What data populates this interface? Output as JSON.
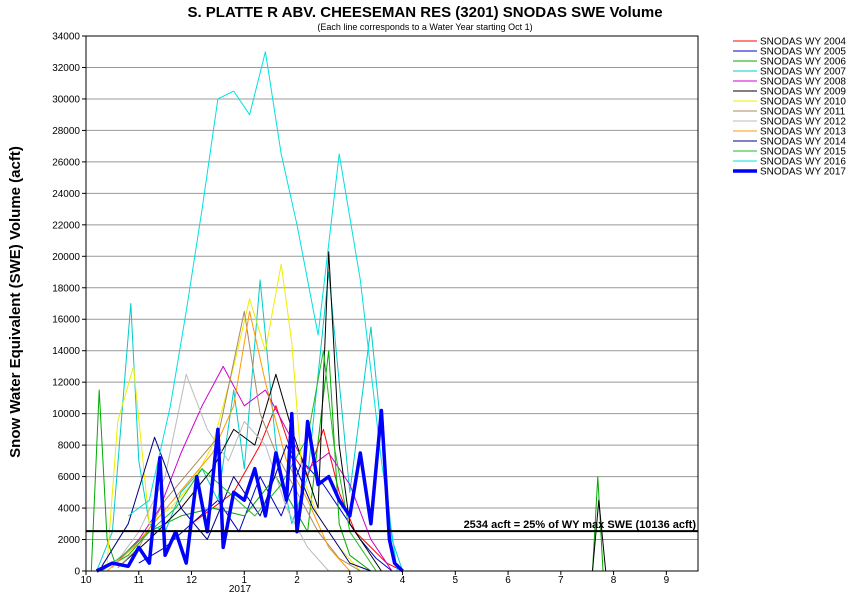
{
  "chart_data": {
    "type": "line",
    "title": "S. PLATTE R ABV. CHEESEMAN RES (3201) SNODAS SWE Volume",
    "subtitle": "(Each line corresponds to a Water Year starting Oct 1)",
    "ylabel": "Snow Water Equivalent (SWE) Volume (acft)",
    "xlabel": "",
    "x_ticks": [
      "10",
      "11",
      "12",
      "1",
      "2",
      "3",
      "4",
      "5",
      "6",
      "7",
      "8",
      "9"
    ],
    "x_year_label": "2017",
    "ylim": [
      0,
      34000
    ],
    "y_ticks": [
      0,
      2000,
      4000,
      6000,
      8000,
      10000,
      12000,
      14000,
      16000,
      18000,
      20000,
      22000,
      24000,
      26000,
      28000,
      30000,
      32000,
      34000
    ],
    "grid": true,
    "legend_position": "right",
    "reference_line": {
      "value": 2534,
      "label": "2534 acft = 25% of WY max SWE (10136 acft)"
    },
    "series": [
      {
        "name": "SNODAS WY 2004",
        "color": "#ff0000",
        "x": [
          2.0,
          2.8,
          3.3,
          3.6,
          3.9,
          4.2,
          4.5,
          4.8,
          5.1,
          5.4,
          5.7,
          6.0
        ],
        "y": [
          3000,
          5000,
          8000,
          10500,
          7500,
          6000,
          9000,
          5000,
          2500,
          1500,
          500,
          0
        ]
      },
      {
        "name": "SNODAS WY 2005",
        "color": "#0000cc",
        "x": [
          1.0,
          1.5,
          2.0,
          2.5,
          2.9,
          3.3,
          3.7,
          4.1,
          4.5,
          4.9,
          5.2,
          5.5,
          5.8
        ],
        "y": [
          500,
          1500,
          3000,
          4500,
          2500,
          6000,
          3500,
          7000,
          5500,
          3500,
          2000,
          800,
          0
        ]
      },
      {
        "name": "SNODAS WY 2006",
        "color": "#00aa00",
        "x": [
          0.1,
          0.25,
          0.4,
          0.55,
          0.8,
          1.2,
          1.8,
          2.4,
          3.0,
          3.6,
          4.2,
          4.6,
          4.8,
          5.0,
          5.4,
          9.6,
          9.7,
          9.8
        ],
        "y": [
          0,
          11500,
          2000,
          500,
          1000,
          2500,
          3500,
          4000,
          3500,
          6000,
          2500,
          14000,
          3000,
          1000,
          0,
          0,
          6000,
          0
        ]
      },
      {
        "name": "SNODAS WY 2007",
        "color": "#00cccc",
        "x": [
          0.2,
          0.5,
          0.85,
          1.0,
          1.2,
          1.5,
          1.8,
          2.2,
          2.5,
          2.8,
          3.0,
          3.3,
          3.6,
          3.9,
          4.2,
          4.6,
          4.8,
          5.0,
          5.4,
          5.8,
          6.0
        ],
        "y": [
          0,
          2500,
          17000,
          7000,
          3000,
          2500,
          5000,
          6500,
          4500,
          11500,
          6500,
          18500,
          8000,
          3000,
          6000,
          19000,
          12000,
          5000,
          15500,
          2000,
          0
        ]
      },
      {
        "name": "SNODAS WY 2008",
        "color": "#cc00cc",
        "x": [
          0.5,
          1.0,
          1.4,
          1.8,
          2.2,
          2.6,
          3.0,
          3.4,
          3.8,
          4.2,
          4.6,
          5.0,
          5.4,
          5.8
        ],
        "y": [
          300,
          2000,
          4000,
          7500,
          10500,
          13000,
          10500,
          11500,
          9000,
          6500,
          7500,
          5500,
          2000,
          0
        ]
      },
      {
        "name": "SNODAS WY 2009",
        "color": "#000000",
        "x": [
          0.7,
          1.2,
          1.8,
          2.4,
          2.8,
          3.2,
          3.6,
          3.9,
          4.2,
          4.4,
          4.6,
          4.8,
          5.0,
          5.3,
          5.6,
          9.6,
          9.72,
          9.85
        ],
        "y": [
          500,
          2000,
          4000,
          6500,
          9000,
          8000,
          12500,
          9000,
          6000,
          4000,
          20300,
          8000,
          3000,
          1500,
          0,
          0,
          4500,
          0
        ]
      },
      {
        "name": "SNODAS WY 2010",
        "color": "#eeee00",
        "x": [
          0.4,
          0.6,
          0.9,
          1.2,
          1.6,
          2.0,
          2.4,
          2.8,
          3.1,
          3.4,
          3.7,
          3.9,
          4.1,
          4.4,
          4.8,
          5.2
        ],
        "y": [
          500,
          9500,
          13000,
          3000,
          4000,
          5500,
          8000,
          13000,
          17300,
          14000,
          19500,
          14500,
          6000,
          3500,
          1500,
          0
        ]
      },
      {
        "name": "SNODAS WY 2011",
        "color": "#aa8866",
        "x": [
          0.6,
          1.0,
          1.5,
          2.0,
          2.5,
          3.0,
          3.3,
          3.6,
          4.0,
          4.4,
          4.8,
          5.2
        ],
        "y": [
          200,
          1500,
          4500,
          6500,
          8500,
          16500,
          10000,
          7500,
          5000,
          2500,
          800,
          0
        ]
      },
      {
        "name": "SNODAS WY 2012",
        "color": "#bbbbbb",
        "x": [
          0.5,
          1.0,
          1.5,
          1.9,
          2.3,
          2.7,
          3.0,
          3.4,
          3.8,
          4.2,
          4.6
        ],
        "y": [
          200,
          2500,
          6000,
          12500,
          9000,
          7000,
          9500,
          8000,
          4000,
          1500,
          0
        ]
      },
      {
        "name": "SNODAS WY 2013",
        "color": "#ff9900",
        "x": [
          0.4,
          0.9,
          1.4,
          1.9,
          2.4,
          2.8,
          3.1,
          3.4,
          3.8,
          4.2,
          4.6,
          5.0
        ],
        "y": [
          0,
          1500,
          3500,
          5500,
          7500,
          10500,
          16500,
          12000,
          7000,
          4500,
          1500,
          0
        ]
      },
      {
        "name": "SNODAS WY 2014",
        "color": "#000080",
        "x": [
          0.3,
          0.8,
          1.3,
          1.8,
          2.3,
          2.8,
          3.3,
          3.8,
          4.3,
          4.7,
          5.0,
          5.4
        ],
        "y": [
          300,
          3000,
          8500,
          4000,
          2000,
          6000,
          3500,
          8000,
          4000,
          2000,
          500,
          0
        ]
      },
      {
        "name": "SNODAS WY 2015",
        "color": "#22bb22",
        "x": [
          0.3,
          0.7,
          1.2,
          1.7,
          2.2,
          2.7,
          3.2,
          3.7,
          4.2,
          4.5,
          4.7,
          5.0,
          5.5
        ],
        "y": [
          0,
          1000,
          2500,
          4000,
          6500,
          5000,
          3500,
          5500,
          8500,
          14000,
          8000,
          2500,
          0
        ]
      },
      {
        "name": "SNODAS WY 2016",
        "color": "#00e0e0",
        "x": [
          0.8,
          1.2,
          1.6,
          1.9,
          2.2,
          2.5,
          2.8,
          3.1,
          3.4,
          3.7,
          4.0,
          4.4,
          4.8,
          5.2,
          5.6,
          5.9
        ],
        "y": [
          3500,
          4500,
          10500,
          16500,
          23000,
          30000,
          30500,
          29000,
          33000,
          26500,
          22000,
          15000,
          26500,
          18500,
          7000,
          0
        ]
      },
      {
        "name": "SNODAS WY 2017",
        "color": "#0000ff",
        "width": 3.5,
        "x": [
          0.2,
          0.5,
          0.8,
          1.0,
          1.2,
          1.4,
          1.5,
          1.7,
          1.9,
          2.1,
          2.3,
          2.5,
          2.6,
          2.8,
          3.0,
          3.2,
          3.4,
          3.6,
          3.8,
          3.9,
          4.0,
          4.1,
          4.2,
          4.4,
          4.6,
          4.8,
          5.0,
          5.2,
          5.4,
          5.6,
          5.75,
          5.85,
          6.0
        ],
        "y": [
          0,
          500,
          300,
          1500,
          500,
          7200,
          1000,
          2500,
          500,
          6000,
          2500,
          9000,
          1500,
          5000,
          4500,
          6500,
          3500,
          7500,
          4500,
          10000,
          2500,
          5000,
          9500,
          5500,
          6000,
          4500,
          3500,
          7500,
          3000,
          10200,
          2000,
          500,
          0
        ]
      }
    ]
  }
}
